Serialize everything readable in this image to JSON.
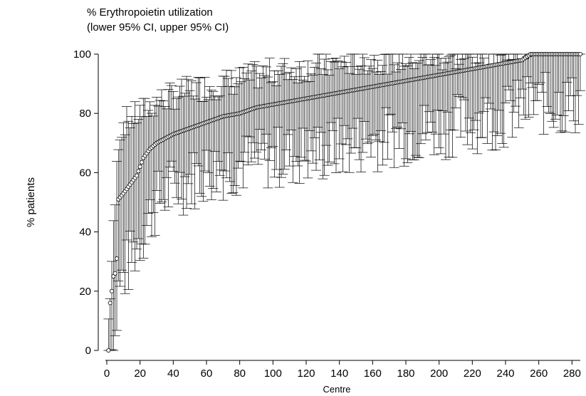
{
  "chart_data": {
    "type": "scatter",
    "title": "% Erythropoietin utilization",
    "subtitle": "(lower 95% CI, upper 95% CI)",
    "xlabel": "Centre",
    "ylabel": "% patients",
    "xlim": [
      0,
      285
    ],
    "ylim": [
      0,
      100
    ],
    "x_ticks": [
      0,
      20,
      40,
      60,
      80,
      100,
      120,
      140,
      160,
      180,
      200,
      220,
      240,
      260,
      280
    ],
    "y_ticks": [
      0,
      20,
      40,
      60,
      80,
      100
    ],
    "grid": false,
    "legend": "none",
    "series": [
      {
        "marker": "hollow-circle",
        "error_bars": "95% CI",
        "x_start": 1,
        "x_end": 285,
        "points_count": 285,
        "y_trend": [
          [
            1,
            0
          ],
          [
            2,
            16
          ],
          [
            3,
            20
          ],
          [
            4,
            25
          ],
          [
            5,
            26
          ],
          [
            6,
            31
          ],
          [
            7,
            51
          ],
          [
            10,
            53
          ],
          [
            14,
            56
          ],
          [
            18,
            59
          ],
          [
            22,
            65
          ],
          [
            26,
            68
          ],
          [
            30,
            70
          ],
          [
            40,
            73
          ],
          [
            50,
            75
          ],
          [
            60,
            77
          ],
          [
            70,
            79
          ],
          [
            80,
            80
          ],
          [
            90,
            82
          ],
          [
            100,
            83
          ],
          [
            110,
            84
          ],
          [
            120,
            85
          ],
          [
            130,
            86
          ],
          [
            140,
            87
          ],
          [
            150,
            88
          ],
          [
            160,
            89
          ],
          [
            170,
            90
          ],
          [
            180,
            91
          ],
          [
            190,
            92
          ],
          [
            200,
            93
          ],
          [
            210,
            94
          ],
          [
            220,
            95
          ],
          [
            230,
            96
          ],
          [
            240,
            97
          ],
          [
            250,
            98
          ],
          [
            255,
            100
          ],
          [
            285,
            100
          ]
        ],
        "ci_lower_trend": [
          [
            1,
            0
          ],
          [
            5,
            3
          ],
          [
            7,
            20
          ],
          [
            10,
            25
          ],
          [
            20,
            38
          ],
          [
            30,
            50
          ],
          [
            40,
            55
          ],
          [
            60,
            60
          ],
          [
            80,
            63
          ],
          [
            100,
            65
          ],
          [
            130,
            67
          ],
          [
            160,
            71
          ],
          [
            200,
            75
          ],
          [
            240,
            79
          ],
          [
            255,
            83
          ],
          [
            270,
            83
          ],
          [
            285,
            83
          ]
        ],
        "ci_upper_trend": [
          [
            1,
            10
          ],
          [
            5,
            50
          ],
          [
            7,
            72
          ],
          [
            10,
            77
          ],
          [
            20,
            80
          ],
          [
            30,
            84
          ],
          [
            50,
            88
          ],
          [
            70,
            90
          ],
          [
            100,
            94
          ],
          [
            130,
            96
          ],
          [
            160,
            98
          ],
          [
            200,
            99
          ],
          [
            240,
            100
          ],
          [
            285,
            100
          ]
        ]
      }
    ]
  }
}
